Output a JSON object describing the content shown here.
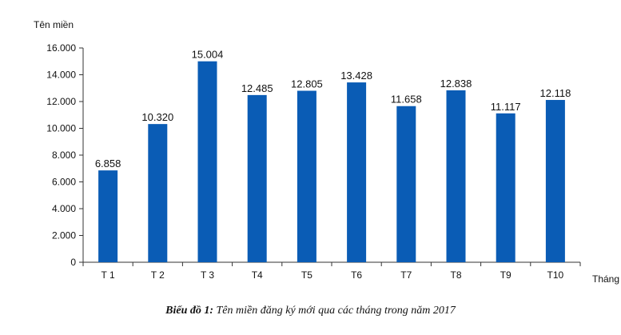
{
  "chart_data": {
    "type": "bar",
    "ylabel": "Tên miền",
    "xlabel": "Tháng",
    "categories": [
      "T 1",
      "T 2",
      "T 3",
      "T4",
      "T5",
      "T6",
      "T7",
      "T8",
      "T9",
      "T10"
    ],
    "values": [
      6858,
      10320,
      15004,
      12485,
      12805,
      13428,
      11658,
      12838,
      11117,
      12118
    ],
    "value_labels": [
      "6.858",
      "10.320",
      "15.004",
      "12.485",
      "12.805",
      "13.428",
      "11.658",
      "12.838",
      "11.117",
      "12.118"
    ],
    "ylim": [
      0,
      16000
    ],
    "yticks": [
      0,
      2000,
      4000,
      6000,
      8000,
      10000,
      12000,
      14000,
      16000
    ],
    "ytick_labels": [
      "0",
      "2.000",
      "4.000",
      "6.000",
      "8.000",
      "10.000",
      "12.000",
      "14.000",
      "16.000"
    ],
    "grid": false,
    "bar_color": "#0a5cb5"
  },
  "caption": {
    "label": "Biểu đồ 1:",
    "text": " Tên miền đăng ký mới qua các tháng trong năm 2017"
  }
}
